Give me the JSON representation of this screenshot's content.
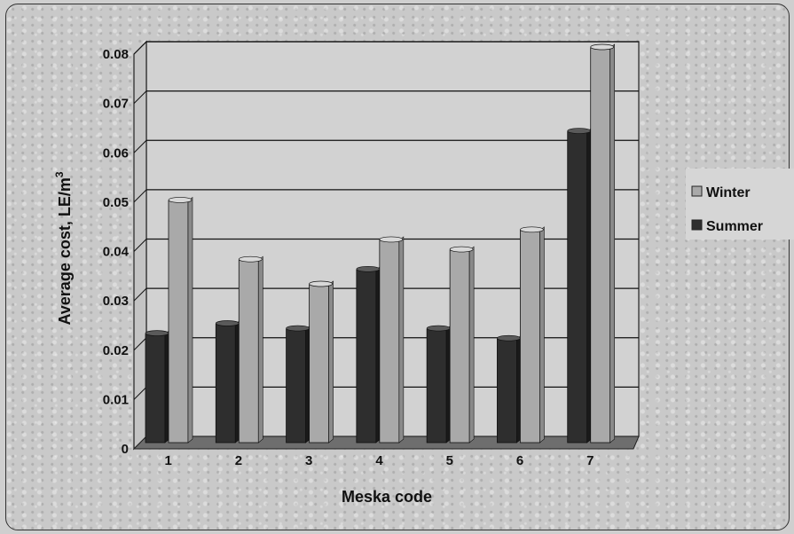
{
  "chart_data": {
    "type": "bar",
    "xlabel": "Meska code",
    "ylabel": "Average cost, LE/m",
    "ylabel_superscript": "3",
    "categories": [
      "1",
      "2",
      "3",
      "4",
      "5",
      "6",
      "7"
    ],
    "ylim": [
      0,
      0.08
    ],
    "yticks": [
      "0",
      "0.01",
      "0.02",
      "0.03",
      "0.04",
      "0.05",
      "0.06",
      "0.07",
      "0.08"
    ],
    "grid": true,
    "legend_position": "right",
    "series": [
      {
        "name": "Summer",
        "values": [
          0.022,
          0.024,
          0.023,
          0.035,
          0.023,
          0.021,
          0.063
        ],
        "color": "#2e2e2e"
      },
      {
        "name": "Winter",
        "values": [
          0.049,
          0.037,
          0.032,
          0.041,
          0.039,
          0.043,
          0.08
        ],
        "color": "#a9a9a9"
      }
    ],
    "legend": [
      "Winter",
      "Summer"
    ]
  }
}
